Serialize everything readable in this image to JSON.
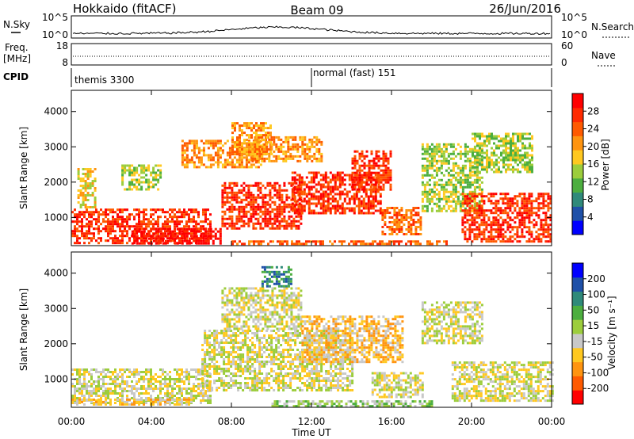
{
  "header": {
    "station": "Hokkaido (fitACF)",
    "beam": "Beam 09",
    "date": "26/Jun/2016"
  },
  "top_strips": {
    "nsky_label": "N.Sky",
    "nsky_ticks": [
      "10^5",
      "10^0"
    ],
    "nsearch_label": "N.Search",
    "nsearch_ticks": [
      "10^5",
      "10^0"
    ],
    "freq_label_1": "Freq.",
    "freq_label_2": "[MHz]",
    "freq_ticks": [
      "18",
      "8"
    ],
    "nave_label": "Nave",
    "nave_ticks": [
      "60",
      "0"
    ],
    "cpid_label": "CPID",
    "cpid_segments": [
      "themis 3300",
      "normal (fast) 151"
    ],
    "cpid_switch_hour": 12.0
  },
  "chart_data": [
    {
      "type": "heatmap",
      "name": "power",
      "ylabel": "Slant Range [km]",
      "ylim": [
        200,
        4600
      ],
      "yticks": [
        1000,
        2000,
        3000,
        4000
      ],
      "xlim": [
        0,
        24
      ],
      "colorbar": {
        "label": "Power [dB]",
        "ticks": [
          "4",
          "8",
          "12",
          "16",
          "20",
          "24",
          "28"
        ],
        "colors": [
          "#0000ff",
          "#1e50a8",
          "#2f8a7a",
          "#4cae3f",
          "#9ccd3c",
          "#ffc820",
          "#ff9410",
          "#ff5a00",
          "#ff2a00",
          "#ff0000"
        ]
      },
      "regions": [
        {
          "t0": 0.0,
          "t1": 7.0,
          "r0": 250,
          "r1": 1250,
          "level": 8
        },
        {
          "t0": 0.3,
          "t1": 1.2,
          "r0": 1300,
          "r1": 2400,
          "level": 5
        },
        {
          "t0": 3.0,
          "t1": 7.5,
          "r0": 250,
          "r1": 700,
          "level": 9
        },
        {
          "t0": 2.5,
          "t1": 4.5,
          "r0": 1800,
          "r1": 2500,
          "level": 4
        },
        {
          "t0": 5.5,
          "t1": 9.5,
          "r0": 2400,
          "r1": 3200,
          "level": 6
        },
        {
          "t0": 7.5,
          "t1": 11.5,
          "r0": 700,
          "r1": 2000,
          "level": 8
        },
        {
          "t0": 8.0,
          "t1": 10.0,
          "r0": 2800,
          "r1": 3700,
          "level": 6
        },
        {
          "t0": 9.0,
          "t1": 12.5,
          "r0": 2600,
          "r1": 3300,
          "level": 6
        },
        {
          "t0": 11.0,
          "t1": 15.5,
          "r0": 1100,
          "r1": 2300,
          "level": 8
        },
        {
          "t0": 14.0,
          "t1": 16.0,
          "r0": 1800,
          "r1": 2900,
          "level": 8
        },
        {
          "t0": 15.5,
          "t1": 17.5,
          "r0": 500,
          "r1": 1300,
          "level": 7
        },
        {
          "t0": 17.5,
          "t1": 20.5,
          "r0": 1200,
          "r1": 3100,
          "level": 4
        },
        {
          "t0": 19.5,
          "t1": 24.0,
          "r0": 300,
          "r1": 1700,
          "level": 8
        },
        {
          "t0": 20.0,
          "t1": 23.0,
          "r0": 2300,
          "r1": 3400,
          "level": 4
        },
        {
          "t0": 8.0,
          "t1": 19.0,
          "r0": 250,
          "r1": 350,
          "level": 7
        }
      ]
    },
    {
      "type": "heatmap",
      "name": "velocity",
      "xlabel": "Time UT",
      "ylabel": "Slant Range [km]",
      "ylim": [
        200,
        4600
      ],
      "yticks": [
        1000,
        2000,
        3000,
        4000
      ],
      "xlim": [
        0,
        24
      ],
      "xticks": [
        "00:00",
        "04:00",
        "08:00",
        "12:00",
        "16:00",
        "20:00",
        "00:00"
      ],
      "colorbar": {
        "label": "Velocity [m s⁻¹]",
        "ticks": [
          "-200",
          "-100",
          "-50",
          "-15",
          "15",
          "50",
          "100",
          "200"
        ],
        "colors": [
          "#ff0000",
          "#ff5a00",
          "#ff9410",
          "#ffc820",
          "#c8c8c8",
          "#9ccd3c",
          "#4cae3f",
          "#2f8a7a",
          "#1e50a8",
          "#0000ff"
        ]
      },
      "regions": [
        {
          "t0": 0.0,
          "t1": 7.0,
          "r0": 300,
          "r1": 1300,
          "level": 4
        },
        {
          "t0": 0.0,
          "t1": 6.0,
          "r0": 250,
          "r1": 450,
          "level": 3
        },
        {
          "t0": 6.5,
          "t1": 14.0,
          "r0": 700,
          "r1": 2400,
          "level": 4
        },
        {
          "t0": 7.5,
          "t1": 11.5,
          "r0": 2400,
          "r1": 3600,
          "level": 4
        },
        {
          "t0": 9.5,
          "t1": 11.0,
          "r0": 3600,
          "r1": 4200,
          "level": 7
        },
        {
          "t0": 11.5,
          "t1": 16.5,
          "r0": 1500,
          "r1": 2800,
          "level": 3
        },
        {
          "t0": 15.0,
          "t1": 17.5,
          "r0": 500,
          "r1": 1200,
          "level": 4
        },
        {
          "t0": 17.5,
          "t1": 20.5,
          "r0": 2000,
          "r1": 3200,
          "level": 4
        },
        {
          "t0": 19.0,
          "t1": 24.0,
          "r0": 400,
          "r1": 1500,
          "level": 4
        },
        {
          "t0": 10.0,
          "t1": 18.0,
          "r0": 250,
          "r1": 400,
          "level": 5
        }
      ]
    }
  ]
}
